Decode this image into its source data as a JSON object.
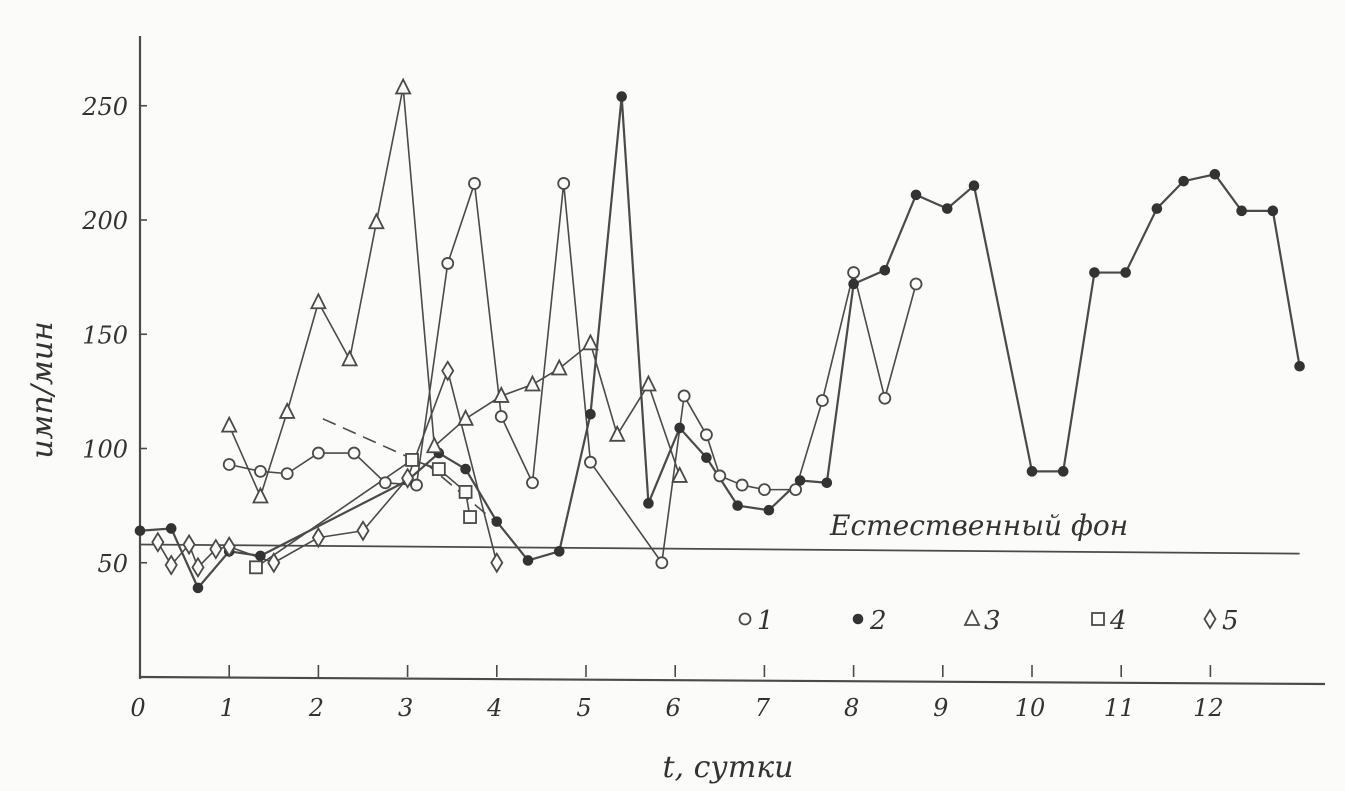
{
  "chart_data": {
    "type": "line",
    "title": "",
    "xlabel": "t, сутки",
    "ylabel": "имп/мин",
    "xlim": [
      0,
      13.2
    ],
    "ylim": [
      0,
      280
    ],
    "x_ticks": [
      0,
      1,
      2,
      3,
      4,
      5,
      6,
      7,
      8,
      9,
      10,
      11,
      12
    ],
    "x_tick_labels": [
      "0",
      "1",
      "2",
      "3",
      "4",
      "5",
      "6",
      "7",
      "8",
      "9",
      "10",
      "11",
      "12"
    ],
    "y_ticks": [
      50,
      100,
      150,
      200,
      250
    ],
    "y_tick_labels": [
      "50",
      "100",
      "150",
      "200",
      "250"
    ],
    "grid": false,
    "legend_position": "bottom-right",
    "background_line": {
      "label": "Естественный фон",
      "x": [
        0,
        13
      ],
      "y": [
        58,
        54
      ]
    },
    "series": [
      {
        "name": "1",
        "marker": "circle-open",
        "x": [
          1.0,
          1.35,
          1.65,
          2.0,
          2.4,
          2.75,
          3.1,
          3.45,
          3.75,
          4.05,
          4.4,
          4.75,
          5.05,
          5.85,
          6.1,
          6.35,
          6.5,
          6.75,
          7.0,
          7.35,
          7.65,
          8.0,
          8.35,
          8.7
        ],
        "y": [
          93,
          90,
          89,
          98,
          98,
          85,
          84,
          181,
          216,
          114,
          85,
          216,
          94,
          50,
          123,
          106,
          88,
          84,
          82,
          82,
          121,
          177,
          122,
          172
        ]
      },
      {
        "name": "2",
        "marker": "circle-filled",
        "x": [
          0.0,
          0.35,
          0.65,
          1.0,
          1.35,
          3.0,
          3.35,
          3.65,
          4.0,
          4.35,
          4.7,
          5.05,
          5.4,
          5.7,
          6.05,
          6.35,
          6.7,
          7.05,
          7.4,
          7.7,
          8.0,
          8.35,
          8.7,
          9.05,
          9.35,
          10.0,
          10.35,
          10.7,
          11.05,
          11.4,
          11.7,
          12.05,
          12.35,
          12.7,
          13.0
        ],
        "y": [
          64,
          65,
          39,
          55,
          53,
          86,
          98,
          91,
          68,
          51,
          55,
          115,
          254,
          76,
          109,
          96,
          75,
          73,
          86,
          85,
          172,
          178,
          211,
          205,
          215,
          90,
          90,
          177,
          177,
          205,
          217,
          220,
          204,
          204,
          136
        ]
      },
      {
        "name": "3",
        "marker": "triangle-open",
        "x": [
          1.0,
          1.35,
          1.65,
          2.0,
          2.35,
          2.65,
          2.95,
          3.3,
          3.65,
          4.05,
          4.4,
          4.7,
          5.05,
          5.35,
          5.7,
          6.05
        ],
        "y": [
          110,
          79,
          116,
          164,
          139,
          199,
          258,
          101,
          113,
          123,
          128,
          135,
          146,
          106,
          128,
          88
        ]
      },
      {
        "name": "4",
        "marker": "square-open",
        "x": [
          1.3,
          3.05,
          3.35,
          3.65,
          3.7
        ],
        "y": [
          48,
          95,
          91,
          81,
          70
        ]
      },
      {
        "name": "5",
        "marker": "diamond-open",
        "x": [
          0.2,
          0.35,
          0.55,
          0.65,
          0.85,
          1.0,
          1.5,
          2.0,
          2.5,
          3.0,
          3.45,
          4.0
        ],
        "y": [
          59,
          49,
          58,
          48,
          56,
          57,
          50,
          61,
          64,
          87,
          134,
          50
        ]
      }
    ],
    "dashed_trend": {
      "x": [
        2.05,
        3.25,
        3.95
      ],
      "y": [
        113,
        92,
        69
      ]
    }
  }
}
